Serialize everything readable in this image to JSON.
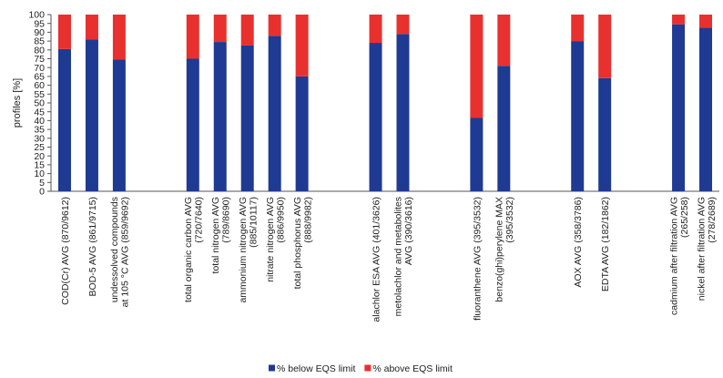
{
  "chart_data": {
    "type": "bar",
    "stacked": true,
    "ylabel": "profiles [%]",
    "ylim": [
      0,
      100
    ],
    "yticks": [
      0,
      5,
      10,
      15,
      20,
      25,
      30,
      35,
      40,
      45,
      50,
      55,
      60,
      65,
      70,
      75,
      80,
      85,
      90,
      95,
      100
    ],
    "grid": false,
    "legend_position": "bottom",
    "categories": [
      {
        "lines": [
          "COD(Cr) AVG (870/9612)"
        ],
        "group": 0
      },
      {
        "lines": [
          "BOD-5 AVG (861/9715)"
        ],
        "group": 0
      },
      {
        "lines": [
          "undessolved compounds",
          "at 105 °C AVG (859/9692)"
        ],
        "group": 0
      },
      {
        "lines": [
          "total organic carbon AVG",
          "(720/7640)"
        ],
        "group": 1
      },
      {
        "lines": [
          "total nitrogen AVG",
          "(789/8690)"
        ],
        "group": 1
      },
      {
        "lines": [
          "ammonium nitrogen AVG",
          "(885/10117)"
        ],
        "group": 1
      },
      {
        "lines": [
          "nitrate nitrogen AVG",
          "(886/9950)"
        ],
        "group": 1
      },
      {
        "lines": [
          "total phosphorus AVG",
          "(888/9982)"
        ],
        "group": 1
      },
      {
        "lines": [
          "alachlor ESA AVG (401/3626)"
        ],
        "group": 2
      },
      {
        "lines": [
          "metolachlor and metabolites",
          "AVG (390/3616)"
        ],
        "group": 2
      },
      {
        "lines": [
          "fluoranthene AVG (395/3532)"
        ],
        "group": 3
      },
      {
        "lines": [
          "benzo(ghi)perylene MAX",
          "(395/3532)"
        ],
        "group": 3
      },
      {
        "lines": [
          "AOX AVG (358/3786)"
        ],
        "group": 4
      },
      {
        "lines": [
          "EDTA AVG (182/1862)"
        ],
        "group": 4
      },
      {
        "lines": [
          "cadmium after filtration AVG",
          "(265/258)"
        ],
        "group": 5
      },
      {
        "lines": [
          "nickel after filtration AVG",
          "(278/2689)"
        ],
        "group": 5
      }
    ],
    "series": [
      {
        "name": "% below EQS limit",
        "color": "#1f3a93",
        "values": [
          80.5,
          86,
          74.5,
          75,
          84.5,
          82.5,
          88,
          65,
          84,
          89,
          41.5,
          71,
          85,
          64,
          94.5,
          92.5
        ]
      },
      {
        "name": "% above EQS limit",
        "color": "#e8312f",
        "values": [
          19.5,
          14,
          25.5,
          25,
          15.5,
          17.5,
          12,
          35,
          16,
          11,
          58.5,
          29,
          15,
          36,
          5.5,
          7.5
        ]
      }
    ]
  }
}
